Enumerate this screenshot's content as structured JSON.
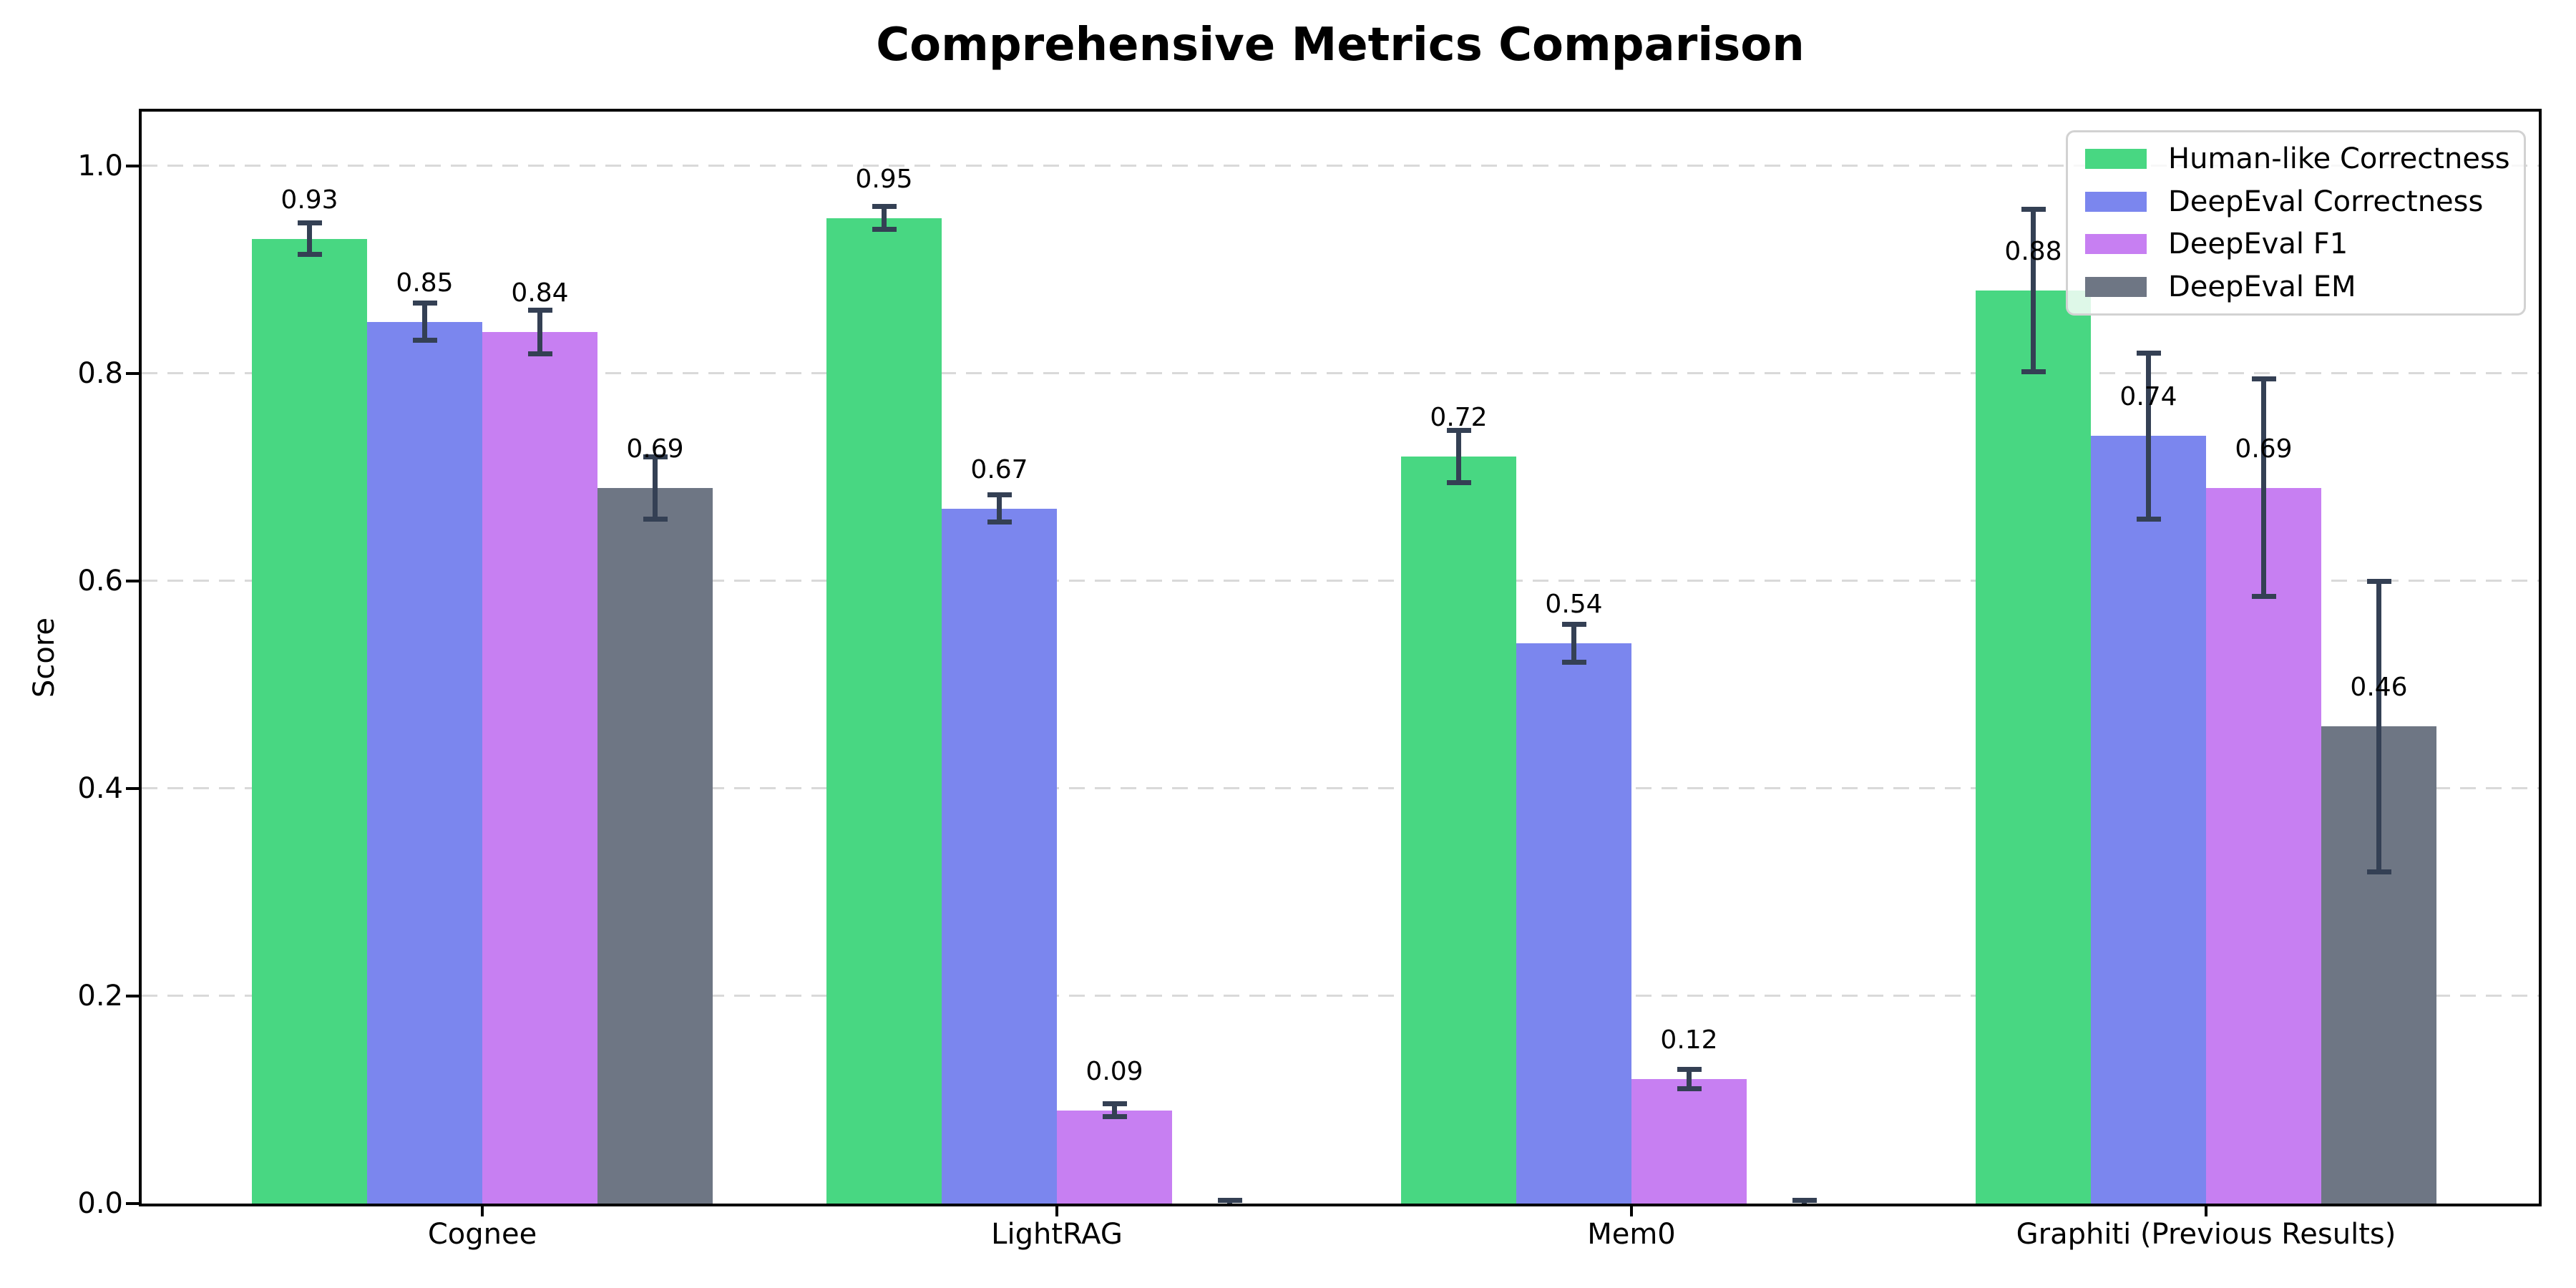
{
  "chart_data": {
    "type": "bar",
    "title": "Comprehensive Metrics Comparison",
    "ylabel": "Score",
    "xlabel": "",
    "categories": [
      "Cognee",
      "LightRAG",
      "Mem0",
      "Graphiti (Previous Results)"
    ],
    "series": [
      {
        "name": "Human-like Correctness",
        "color": "#48d782",
        "values": [
          0.93,
          0.95,
          0.72,
          0.88
        ],
        "errors": [
          0.015,
          0.011,
          0.025,
          0.078
        ],
        "labels": [
          "0.93",
          "0.95",
          "0.72",
          "0.88"
        ]
      },
      {
        "name": "DeepEval Correctness",
        "color": "#7b86ee",
        "values": [
          0.85,
          0.67,
          0.54,
          0.74
        ],
        "errors": [
          0.018,
          0.013,
          0.018,
          0.08
        ],
        "labels": [
          "0.85",
          "0.67",
          "0.54",
          "0.74"
        ]
      },
      {
        "name": "DeepEval F1",
        "color": "#c77ff2",
        "values": [
          0.84,
          0.09,
          0.12,
          0.69
        ],
        "errors": [
          0.021,
          0.006,
          0.009,
          0.105
        ],
        "labels": [
          "0.84",
          "0.09",
          "0.12",
          "0.69"
        ]
      },
      {
        "name": "DeepEval EM",
        "color": "#6e7684",
        "values": [
          0.69,
          0.0,
          0.0,
          0.46
        ],
        "errors": [
          0.03,
          0.003,
          0.003,
          0.14
        ],
        "labels": [
          "0.69",
          "",
          "",
          "0.46"
        ]
      }
    ],
    "yticks": {
      "values": [
        0.0,
        0.2,
        0.4,
        0.6,
        0.8,
        1.0
      ],
      "labels": [
        "0.0",
        "0.2",
        "0.4",
        "0.6",
        "0.8",
        "1.0"
      ]
    },
    "ylim": [
      0,
      1.053
    ],
    "grid": "horizontal-dashed",
    "grid_color": "#d9d9d9",
    "error_bar_color": "#344054",
    "legend_position": "upper right"
  }
}
